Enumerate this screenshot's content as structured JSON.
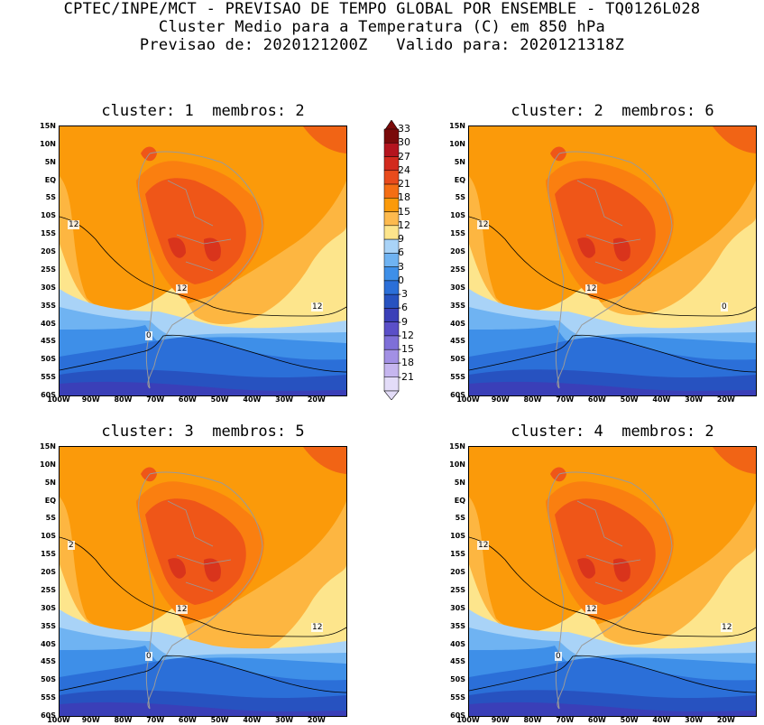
{
  "header": {
    "line1": "CPTEC/INPE/MCT - PREVISAO DE TEMPO GLOBAL POR ENSEMBLE - TQ0126L028",
    "line2": "Cluster Medio para a Temperatura (C) em 850 hPa",
    "line3": "Previsao de: 2020121200Z   Valido para: 2020121318Z"
  },
  "axes": {
    "lat_labels": [
      "15N",
      "10N",
      "5N",
      "EQ",
      "5S",
      "10S",
      "15S",
      "20S",
      "25S",
      "30S",
      "35S",
      "40S",
      "45S",
      "50S",
      "55S",
      "60S"
    ],
    "lon_labels": [
      "100W",
      "90W",
      "80W",
      "70W",
      "60W",
      "50W",
      "40W",
      "30W",
      "20W"
    ]
  },
  "colorbar": {
    "labels": [
      "33",
      "30",
      "27",
      "24",
      "21",
      "18",
      "15",
      "12",
      "9",
      "6",
      "3",
      "0",
      "-3",
      "-6",
      "-9",
      "-12",
      "-15",
      "-18",
      "-21"
    ],
    "colors": [
      "#7a0a0a",
      "#b4141e",
      "#d22a1e",
      "#e84b1c",
      "#f46e14",
      "#fb9a0a",
      "#fdba4e",
      "#fde58c",
      "#a9d3f7",
      "#6fb3f2",
      "#3e8fe8",
      "#2b6fd8",
      "#2752c0",
      "#3a3fb8",
      "#5a4fc8",
      "#7e6fd8",
      "#a290e4",
      "#c6b6ef",
      "#e3dcf8"
    ]
  },
  "panels": [
    {
      "title": "cluster: 1  membros: 2",
      "contour_labels": [
        "12",
        "12",
        "12",
        "0"
      ]
    },
    {
      "title": "cluster: 2  membros: 6",
      "contour_labels": [
        "12",
        "12",
        "0"
      ]
    },
    {
      "title": "cluster: 3  membros: 5",
      "contour_labels": [
        "2",
        "12",
        "12",
        "0"
      ]
    },
    {
      "title": "cluster: 4  membros: 2",
      "contour_labels": [
        "12",
        "12",
        "12",
        "0"
      ]
    }
  ]
}
